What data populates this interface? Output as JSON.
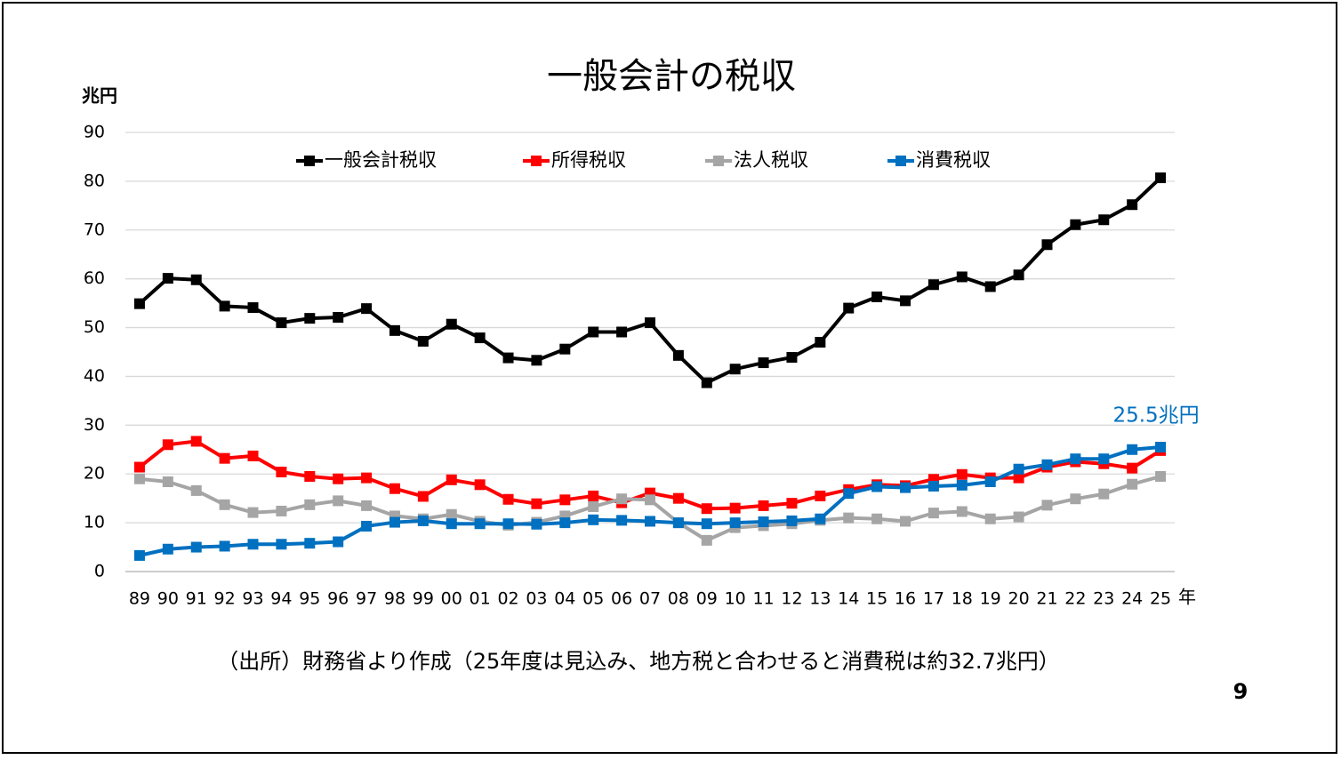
{
  "chart_data": {
    "type": "line",
    "title": "一般会計の税収",
    "y_label": "兆円",
    "x_label": "年",
    "categories": [
      "89",
      "90",
      "91",
      "92",
      "93",
      "94",
      "95",
      "96",
      "97",
      "98",
      "99",
      "00",
      "01",
      "02",
      "03",
      "04",
      "05",
      "06",
      "07",
      "08",
      "09",
      "10",
      "11",
      "12",
      "13",
      "14",
      "15",
      "16",
      "17",
      "18",
      "19",
      "20",
      "21",
      "22",
      "23",
      "24",
      "25"
    ],
    "series": [
      {
        "name": "一般会計税収",
        "color": "#000000",
        "values": [
          54.9,
          60.1,
          59.8,
          54.4,
          54.1,
          51.0,
          51.9,
          52.1,
          53.9,
          49.4,
          47.2,
          50.7,
          47.9,
          43.8,
          43.3,
          45.6,
          49.1,
          49.1,
          51.0,
          44.3,
          38.7,
          41.5,
          42.8,
          43.9,
          47.0,
          54.0,
          56.3,
          55.5,
          58.8,
          60.4,
          58.4,
          60.8,
          67.0,
          71.1,
          72.1,
          75.2,
          80.7
        ]
      },
      {
        "name": "所得税収",
        "color": "#ff0000",
        "values": [
          21.4,
          26.0,
          26.7,
          23.2,
          23.7,
          20.4,
          19.5,
          19.0,
          19.2,
          17.0,
          15.4,
          18.8,
          17.8,
          14.8,
          13.9,
          14.7,
          15.5,
          14.1,
          16.1,
          15.0,
          12.9,
          13.0,
          13.5,
          14.0,
          15.5,
          16.8,
          17.8,
          17.6,
          18.9,
          19.9,
          19.2,
          19.2,
          21.4,
          22.5,
          22.1,
          21.2,
          24.8
        ]
      },
      {
        "name": "法人税収",
        "color": "#a5a5a5",
        "values": [
          19.0,
          18.4,
          16.6,
          13.7,
          12.1,
          12.4,
          13.7,
          14.5,
          13.5,
          11.4,
          10.8,
          11.7,
          10.3,
          9.5,
          10.1,
          11.4,
          13.3,
          14.9,
          14.7,
          10.0,
          6.4,
          9.0,
          9.4,
          9.8,
          10.5,
          11.0,
          10.8,
          10.3,
          12.0,
          12.3,
          10.8,
          11.2,
          13.6,
          14.9,
          15.9,
          17.9,
          19.5
        ]
      },
      {
        "name": "消費税収",
        "color": "#0070c0",
        "values": [
          3.3,
          4.6,
          5.0,
          5.2,
          5.6,
          5.6,
          5.8,
          6.1,
          9.3,
          10.1,
          10.4,
          9.8,
          9.8,
          9.8,
          9.7,
          10.0,
          10.6,
          10.5,
          10.3,
          10.0,
          9.8,
          10.0,
          10.2,
          10.4,
          10.8,
          16.0,
          17.4,
          17.2,
          17.5,
          17.7,
          18.4,
          21.0,
          21.9,
          23.1,
          23.1,
          25.0,
          25.5
        ]
      }
    ],
    "annotation": "25.5兆円",
    "ylim": [
      0,
      90
    ],
    "yticks": [
      0,
      10,
      20,
      30,
      40,
      50,
      60,
      70,
      80,
      90
    ],
    "grid": true,
    "legend": "top",
    "source": "（出所）財務省より作成（25年度は見込み、地方税と合わせると消費税は約32.7兆円）"
  },
  "page_number": "9"
}
